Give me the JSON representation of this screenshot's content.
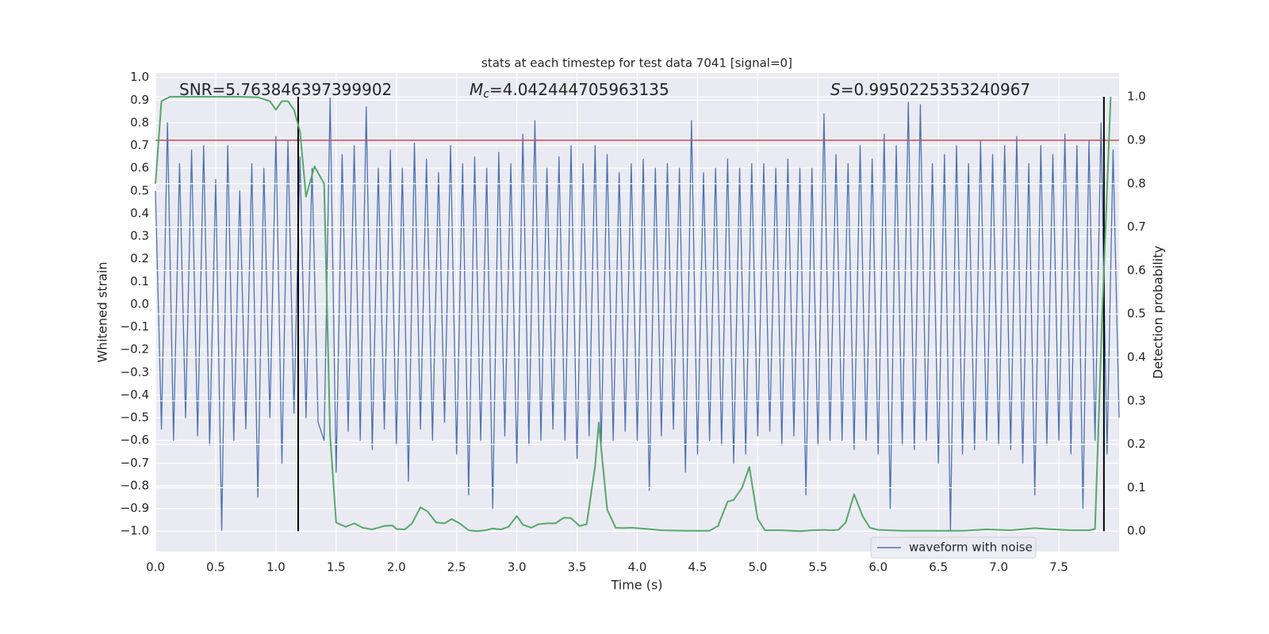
{
  "chart_data": {
    "type": "line",
    "title": "stats at each timestep for test data 7041 [signal=0]",
    "xlabel": "Time (s)",
    "ylabel": "Whitened strain",
    "y2label": "Detection probability",
    "xlim": [
      0,
      8
    ],
    "ylim": [
      -1.09,
      1.02
    ],
    "y2lim": [
      -0.047,
      1.055
    ],
    "xticks": [
      {
        "value": 0,
        "label": "0.0"
      },
      0.5,
      {
        "value": 1,
        "label": "1.0"
      },
      1.5,
      {
        "value": 2,
        "label": "2.0"
      },
      2.5,
      {
        "value": 3,
        "label": "3.0"
      },
      3.5,
      {
        "value": 4,
        "label": "4.0"
      },
      4.5,
      {
        "value": 5,
        "label": "5.0"
      },
      5.5,
      {
        "value": 6,
        "label": "6.0"
      },
      6.5,
      {
        "value": 7,
        "label": "7.0"
      },
      7.5
    ],
    "yticks": [
      {
        "value": 1,
        "label": "1.0"
      },
      0.9,
      0.8,
      0.7,
      0.6,
      0.5,
      0.4,
      0.3,
      0.2,
      0.1,
      {
        "value": 0,
        "label": "0.0"
      },
      {
        "value": -0.1,
        "label": "−0.1"
      },
      {
        "value": -0.2,
        "label": "−0.2"
      },
      {
        "value": -0.3,
        "label": "−0.3"
      },
      {
        "value": -0.4,
        "label": "−0.4"
      },
      {
        "value": -0.5,
        "label": "−0.5"
      },
      {
        "value": -0.6,
        "label": "−0.6"
      },
      {
        "value": -0.7,
        "label": "−0.7"
      },
      {
        "value": -0.8,
        "label": "−0.8"
      },
      {
        "value": -0.9,
        "label": "−0.9"
      },
      {
        "value": -1,
        "label": "−1.0"
      }
    ],
    "y2ticks": [
      {
        "value": 0,
        "label": "0.0"
      },
      0.1,
      0.2,
      0.3,
      0.4,
      0.5,
      0.6,
      0.7,
      0.8,
      0.9,
      {
        "value": 1,
        "label": "1.0"
      }
    ],
    "grid": true,
    "legend": "lower right",
    "x": [
      0,
      0.05,
      0.1,
      0.15,
      0.2,
      0.25,
      0.3,
      0.35,
      0.4,
      0.45,
      0.5,
      0.55,
      0.6,
      0.65,
      0.7,
      0.75,
      0.8,
      0.85,
      0.9,
      0.95,
      1,
      1.05,
      1.1,
      1.15,
      1.2,
      1.25,
      1.3,
      1.35,
      1.4,
      1.45,
      1.5,
      1.55,
      1.6,
      1.65,
      1.7,
      1.75,
      1.8,
      1.85,
      1.9,
      1.95,
      2,
      2.05,
      2.1,
      2.15,
      2.2,
      2.25,
      2.3,
      2.35,
      2.4,
      2.45,
      2.5,
      2.55,
      2.6,
      2.65,
      2.7,
      2.75,
      2.8,
      2.85,
      2.9,
      2.95,
      3,
      3.05,
      3.1,
      3.15,
      3.2,
      3.25,
      3.3,
      3.35,
      3.4,
      3.45,
      3.5,
      3.55,
      3.6,
      3.65,
      3.7,
      3.75,
      3.8,
      3.85,
      3.9,
      3.95,
      4,
      4.05,
      4.1,
      4.15,
      4.2,
      4.25,
      4.3,
      4.35,
      4.4,
      4.45,
      4.5,
      4.55,
      4.6,
      4.65,
      4.7,
      4.75,
      4.8,
      4.85,
      4.9,
      4.95,
      5,
      5.05,
      5.1,
      5.15,
      5.2,
      5.25,
      5.3,
      5.35,
      5.4,
      5.45,
      5.5,
      5.55,
      5.6,
      5.65,
      5.7,
      5.75,
      5.8,
      5.85,
      5.9,
      5.95,
      6,
      6.05,
      6.1,
      6.15,
      6.2,
      6.25,
      6.3,
      6.35,
      6.4,
      6.45,
      6.5,
      6.55,
      6.6,
      6.65,
      6.7,
      6.75,
      6.8,
      6.85,
      6.9,
      6.95,
      7,
      7.05,
      7.1,
      7.15,
      7.2,
      7.25,
      7.3,
      7.35,
      7.4,
      7.45,
      7.5,
      7.55,
      7.6,
      7.65,
      7.7,
      7.75,
      7.8,
      7.85,
      7.9,
      7.95,
      8
    ],
    "series": [
      {
        "name": "waveform with noise",
        "color": "#4c72b0",
        "values": [
          0.5,
          -0.55,
          0.8,
          -0.6,
          0.62,
          -0.5,
          0.68,
          -0.58,
          0.7,
          -0.62,
          0.55,
          -1.0,
          0.7,
          -0.6,
          0.5,
          -0.55,
          0.62,
          -0.85,
          0.6,
          -0.5,
          0.74,
          -0.7,
          0.72,
          -0.48,
          0.65,
          -0.5,
          0.6,
          -0.52,
          -0.6,
          0.91,
          -0.74,
          0.66,
          -0.56,
          0.7,
          -0.6,
          0.87,
          -0.64,
          0.6,
          -0.55,
          0.68,
          -0.62,
          0.6,
          -0.78,
          0.71,
          -0.55,
          0.64,
          -0.6,
          0.58,
          -0.52,
          0.7,
          -0.66,
          0.62,
          -0.84,
          0.65,
          -0.6,
          0.6,
          -0.9,
          0.67,
          -0.58,
          0.62,
          -0.7,
          0.75,
          -0.62,
          0.81,
          -0.6,
          0.6,
          -0.55,
          0.65,
          -0.6,
          0.7,
          -0.68,
          0.62,
          -0.58,
          0.7,
          -0.64,
          0.66,
          -0.6,
          0.58,
          -0.56,
          0.62,
          -0.6,
          0.64,
          -0.82,
          0.6,
          -0.58,
          0.62,
          -0.55,
          0.6,
          -0.74,
          0.81,
          -0.66,
          0.58,
          -0.6,
          0.6,
          -0.62,
          0.64,
          -0.7,
          0.6,
          -0.66,
          0.62,
          -0.58,
          0.62,
          -0.56,
          0.6,
          -0.62,
          0.64,
          -0.58,
          0.6,
          -0.84,
          0.6,
          -0.62,
          0.84,
          -0.6,
          0.66,
          -0.6,
          0.62,
          -0.64,
          0.7,
          -0.6,
          0.64,
          -0.66,
          0.75,
          -0.9,
          0.7,
          -0.62,
          0.89,
          -0.64,
          0.88,
          -0.6,
          0.62,
          -0.7,
          0.66,
          -1.0,
          0.7,
          -0.66,
          0.62,
          -0.64,
          0.72,
          -0.6,
          0.66,
          -0.62,
          0.7,
          -0.64,
          0.74,
          -0.7,
          0.62,
          -0.84,
          0.7,
          -0.62,
          0.66,
          -0.6,
          0.75,
          -0.66,
          0.7,
          -0.9,
          0.72,
          -0.6,
          0.8,
          -0.66,
          0.68,
          -0.5
        ]
      }
    ],
    "probability": {
      "color": "#55a868",
      "axis": "y2",
      "x": [
        0,
        0.05,
        0.12,
        0.3,
        0.5,
        0.7,
        0.85,
        0.95,
        1,
        1.05,
        1.1,
        1.15,
        1.2,
        1.25,
        1.32,
        1.4,
        1.45,
        1.5,
        1.58,
        1.65,
        1.72,
        1.8,
        1.9,
        1.97,
        2,
        2.07,
        2.13,
        2.2,
        2.26,
        2.33,
        2.4,
        2.46,
        2.53,
        2.6,
        2.67,
        2.74,
        2.8,
        2.87,
        2.93,
        3,
        3.05,
        3.12,
        3.18,
        3.25,
        3.32,
        3.39,
        3.45,
        3.52,
        3.58,
        3.65,
        3.68,
        3.75,
        3.82,
        3.88,
        3.95,
        4.05,
        4.2,
        4.4,
        4.6,
        4.67,
        4.75,
        4.8,
        4.87,
        4.93,
        5,
        5.06,
        5.2,
        5.35,
        5.45,
        5.55,
        5.6,
        5.67,
        5.73,
        5.8,
        5.87,
        5.93,
        6,
        6.2,
        6.5,
        6.7,
        6.9,
        7.1,
        7.3,
        7.4,
        7.6,
        7.75,
        7.8,
        7.86,
        7.93
      ],
      "values": [
        0.8,
        0.99,
        1.0,
        1.0,
        1.0,
        1.0,
        0.999,
        0.99,
        0.97,
        0.99,
        0.99,
        0.97,
        0.92,
        0.77,
        0.84,
        0.8,
        0.22,
        0.02,
        0.01,
        0.018,
        0.008,
        0.004,
        0.012,
        0.013,
        0.005,
        0.004,
        0.018,
        0.055,
        0.045,
        0.02,
        0.018,
        0.028,
        0.017,
        0.002,
        0.0,
        0.002,
        0.006,
        0.004,
        0.01,
        0.035,
        0.015,
        0.008,
        0.016,
        0.018,
        0.018,
        0.031,
        0.03,
        0.012,
        0.016,
        0.15,
        0.25,
        0.05,
        0.008,
        0.007,
        0.008,
        0.006,
        0.002,
        0.001,
        0.001,
        0.012,
        0.068,
        0.072,
        0.1,
        0.148,
        0.028,
        0.002,
        0.002,
        0.0,
        0.002,
        0.003,
        0.002,
        0.003,
        0.02,
        0.085,
        0.035,
        0.008,
        0.003,
        0.001,
        0.001,
        0.001,
        0.004,
        0.002,
        0.007,
        0.005,
        0.002,
        0.002,
        0.005,
        0.5,
        1.0
      ]
    },
    "threshold": {
      "value": 0.9,
      "color": "#c44e52",
      "axis": "y2"
    },
    "markers": {
      "x": [
        1.185,
        7.874
      ],
      "span": [
        0,
        1
      ],
      "color": "#000000",
      "axis": "y2"
    },
    "annotations": [
      {
        "text": "SNR=5.763846397399902"
      },
      {
        "symbol": "M",
        "subscript": "c",
        "text": "=4.042444705963135"
      },
      {
        "symbol": "S",
        "text": "=0.9950225353240967"
      }
    ]
  }
}
